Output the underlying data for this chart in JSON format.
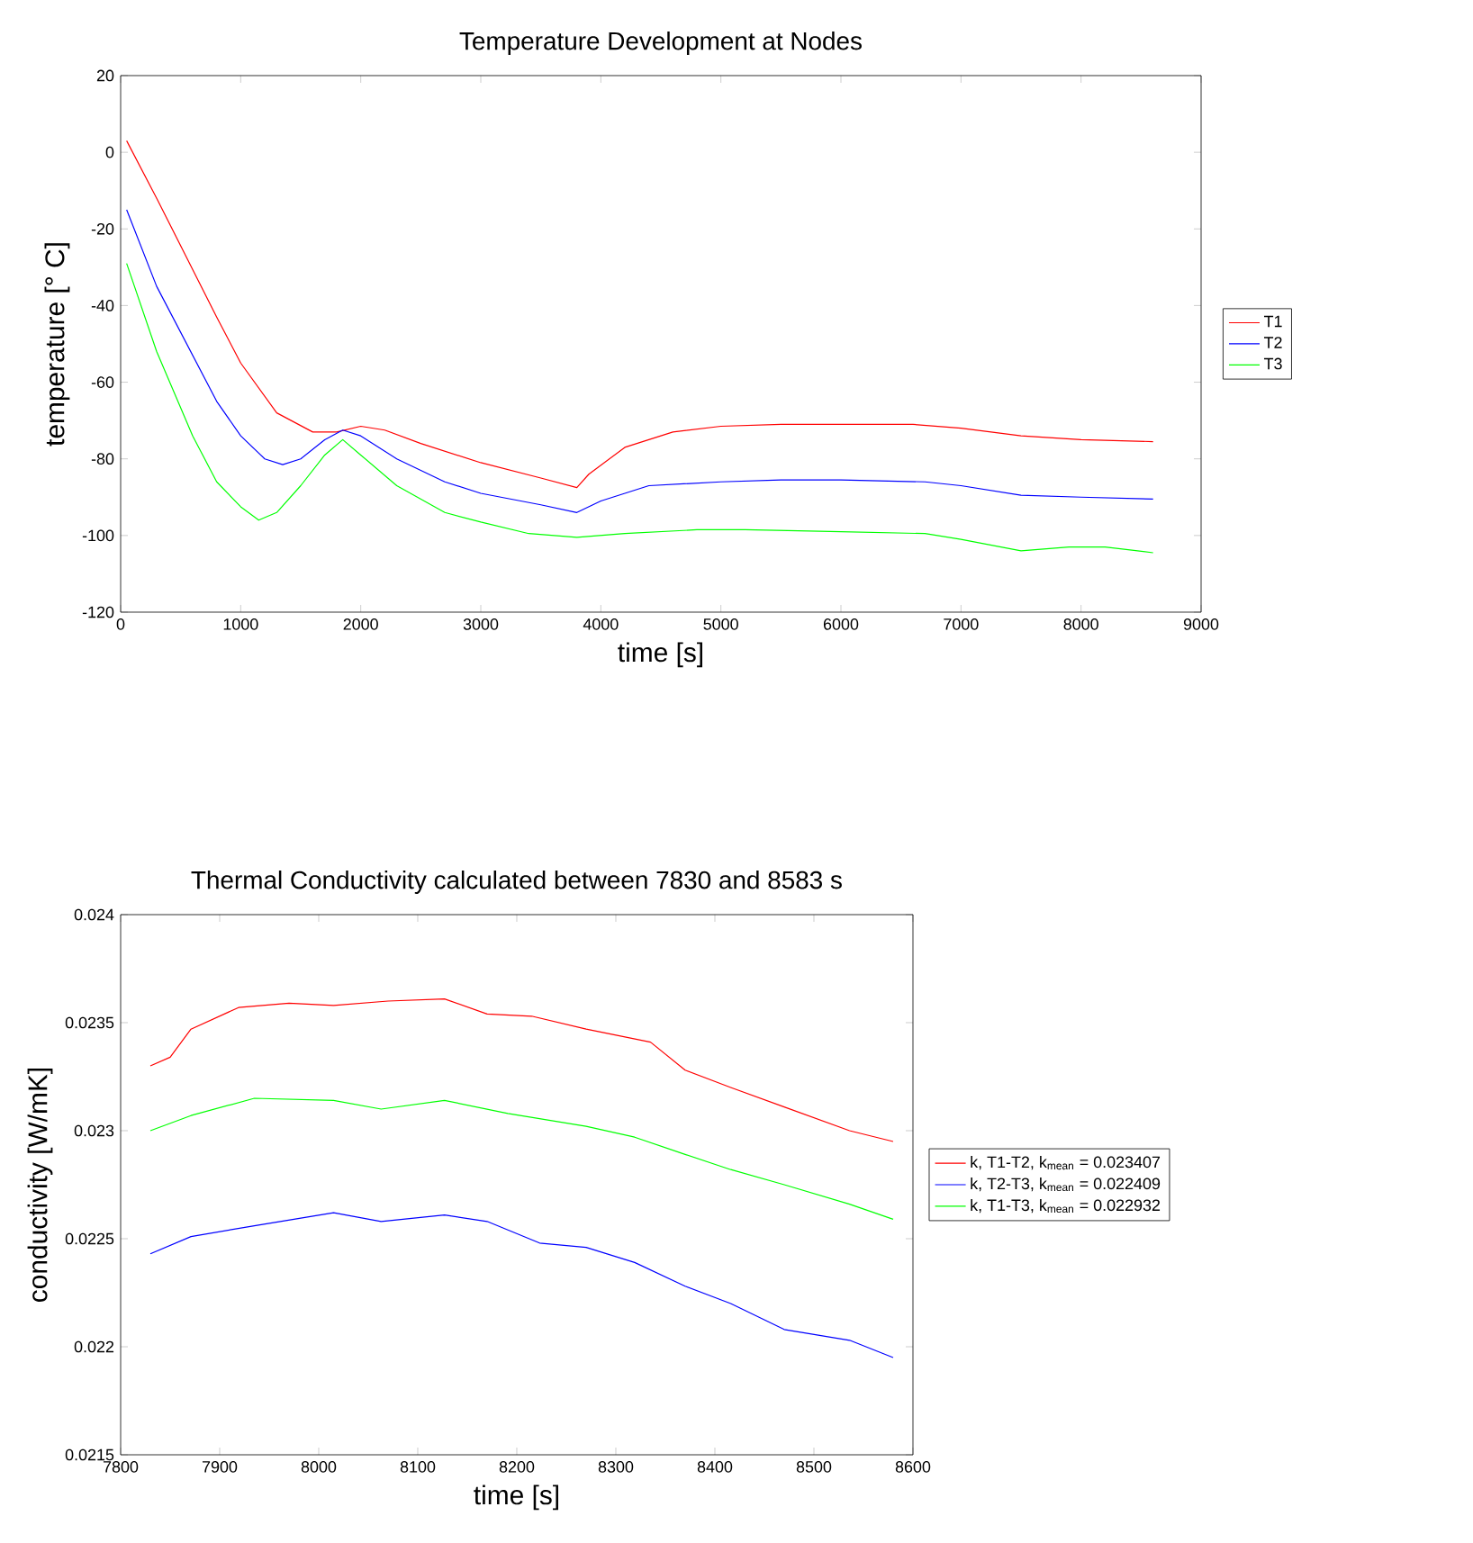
{
  "chart_data": [
    {
      "type": "line",
      "title": "Temperature Development at Nodes",
      "xlabel": "time [s]",
      "ylabel": "temperature [° C]",
      "xlim": [
        0,
        9000
      ],
      "ylim": [
        -120,
        20
      ],
      "xticks": [
        0,
        1000,
        2000,
        3000,
        4000,
        5000,
        6000,
        7000,
        8000,
        9000
      ],
      "yticks": [
        -120,
        -100,
        -80,
        -60,
        -40,
        -20,
        0,
        20
      ],
      "grid": false,
      "legend": "right",
      "marker": "none",
      "line_style": "solid",
      "series": [
        {
          "name": "T1",
          "color": "#ff0000",
          "x": [
            50,
            300,
            800,
            1000,
            1300,
            1600,
            1800,
            2000,
            2200,
            2500,
            3000,
            3500,
            3800,
            3900,
            4200,
            4600,
            5000,
            5500,
            6000,
            6600,
            7000,
            7500,
            8000,
            8600
          ],
          "values": [
            3,
            -12,
            -43,
            -55,
            -68,
            -73,
            -73,
            -71.5,
            -72.5,
            -76,
            -81,
            -85,
            -87.5,
            -84,
            -77,
            -73,
            -71.5,
            -71,
            -71,
            -71,
            -72,
            -74,
            -75,
            -75.5
          ]
        },
        {
          "name": "T2",
          "color": "#0000ff",
          "x": [
            50,
            300,
            800,
            1000,
            1200,
            1350,
            1500,
            1700,
            1850,
            2000,
            2300,
            2700,
            3000,
            3500,
            3800,
            4000,
            4400,
            5000,
            5500,
            6000,
            6700,
            7000,
            7500,
            8000,
            8600
          ],
          "values": [
            -15,
            -35,
            -65,
            -74,
            -80,
            -81.5,
            -80,
            -75,
            -72.5,
            -74,
            -80,
            -86,
            -89,
            -92,
            -94,
            -91,
            -87,
            -86,
            -85.5,
            -85.5,
            -86,
            -87,
            -89.5,
            -90,
            -90.5
          ]
        },
        {
          "name": "T3",
          "color": "#00ff00",
          "x": [
            50,
            300,
            600,
            800,
            1000,
            1150,
            1300,
            1500,
            1700,
            1850,
            2000,
            2300,
            2700,
            3000,
            3400,
            3800,
            4200,
            4800,
            5200,
            6000,
            6700,
            7000,
            7500,
            7900,
            8200,
            8600
          ],
          "values": [
            -29,
            -52,
            -74,
            -86,
            -92.5,
            -96,
            -94,
            -87,
            -79,
            -75,
            -79,
            -87,
            -94,
            -96.5,
            -99.5,
            -100.5,
            -99.5,
            -98.5,
            -98.5,
            -99,
            -99.5,
            -101,
            -104,
            -103,
            -103,
            -104.5
          ]
        }
      ]
    },
    {
      "type": "line",
      "title": "Thermal Conductivity calculated between 7830 and 8583 s",
      "xlabel": "time [s]",
      "ylabel": "conductivity [W/mK]",
      "xlim": [
        7800,
        8600
      ],
      "ylim": [
        0.0215,
        0.024
      ],
      "xticks": [
        7800,
        7900,
        8000,
        8100,
        8200,
        8300,
        8400,
        8500,
        8600
      ],
      "yticks": [
        0.0215,
        0.022,
        0.0225,
        0.023,
        0.0235,
        0.024
      ],
      "grid": false,
      "legend": "right",
      "marker": "none",
      "line_style": "solid",
      "series": [
        {
          "name": "k, T1-T2, k$_{mean}$ = 0.023407",
          "color": "#ff0000",
          "x": [
            7830,
            7850,
            7871,
            7919,
            7970,
            8015,
            8070,
            8127,
            8170,
            8215,
            8270,
            8335,
            8370,
            8416,
            8470,
            8536,
            8580
          ],
          "values": [
            0.0233,
            0.02334,
            0.02347,
            0.02357,
            0.02359,
            0.02358,
            0.0236,
            0.02361,
            0.02354,
            0.02353,
            0.02347,
            0.02341,
            0.02328,
            0.0232,
            0.02311,
            0.023,
            0.02295
          ]
        },
        {
          "name": "k, T2-T3, k$_{mean}$ = 0.022409",
          "color": "#0000ff",
          "x": [
            7830,
            7871,
            7935,
            8015,
            8063,
            8127,
            8170,
            8223,
            8270,
            8319,
            8370,
            8416,
            8470,
            8536,
            8580
          ],
          "values": [
            0.02243,
            0.02251,
            0.02256,
            0.02262,
            0.02258,
            0.02261,
            0.02258,
            0.02248,
            0.02246,
            0.02239,
            0.02228,
            0.0222,
            0.02208,
            0.02203,
            0.02195
          ]
        },
        {
          "name": "k, T1-T3, k$_{mean}$ = 0.022932",
          "color": "#00ff00",
          "x": [
            7830,
            7871,
            7935,
            8015,
            8063,
            8127,
            8191,
            8270,
            8319,
            8370,
            8416,
            8470,
            8536,
            8580
          ],
          "values": [
            0.023,
            0.02307,
            0.02315,
            0.02314,
            0.0231,
            0.02314,
            0.02308,
            0.02302,
            0.02297,
            0.02289,
            0.02282,
            0.02275,
            0.02266,
            0.02259
          ]
        }
      ]
    }
  ]
}
